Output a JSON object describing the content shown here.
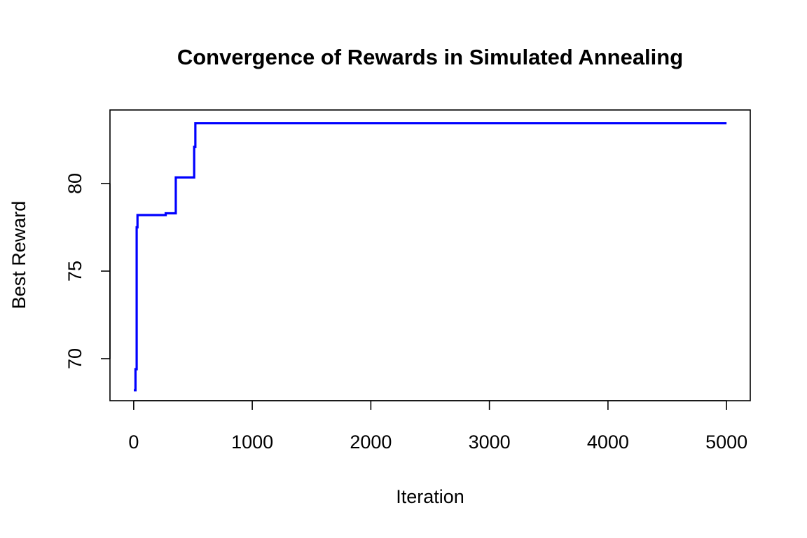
{
  "chart_data": {
    "type": "line",
    "title": "Convergence of Rewards in Simulated Annealing",
    "xlabel": "Iteration",
    "ylabel": "Best Reward",
    "xlim": [
      -200,
      5200
    ],
    "ylim": [
      67.6,
      84.2
    ],
    "x_ticks": [
      0,
      1000,
      2000,
      3000,
      4000,
      5000
    ],
    "x_tick_labels": [
      "0",
      "1000",
      "2000",
      "3000",
      "4000",
      "5000"
    ],
    "y_ticks": [
      70,
      75,
      80
    ],
    "y_tick_labels": [
      "70",
      "75",
      "80"
    ],
    "grid": false,
    "legend": "none",
    "series": [
      {
        "color": "#0000ff",
        "step": true,
        "x": [
          1,
          15,
          25,
          32,
          270,
          355,
          510,
          520,
          5000
        ],
        "values": [
          68.2,
          69.4,
          77.5,
          78.2,
          78.3,
          80.35,
          82.1,
          83.45,
          83.45
        ]
      }
    ]
  }
}
